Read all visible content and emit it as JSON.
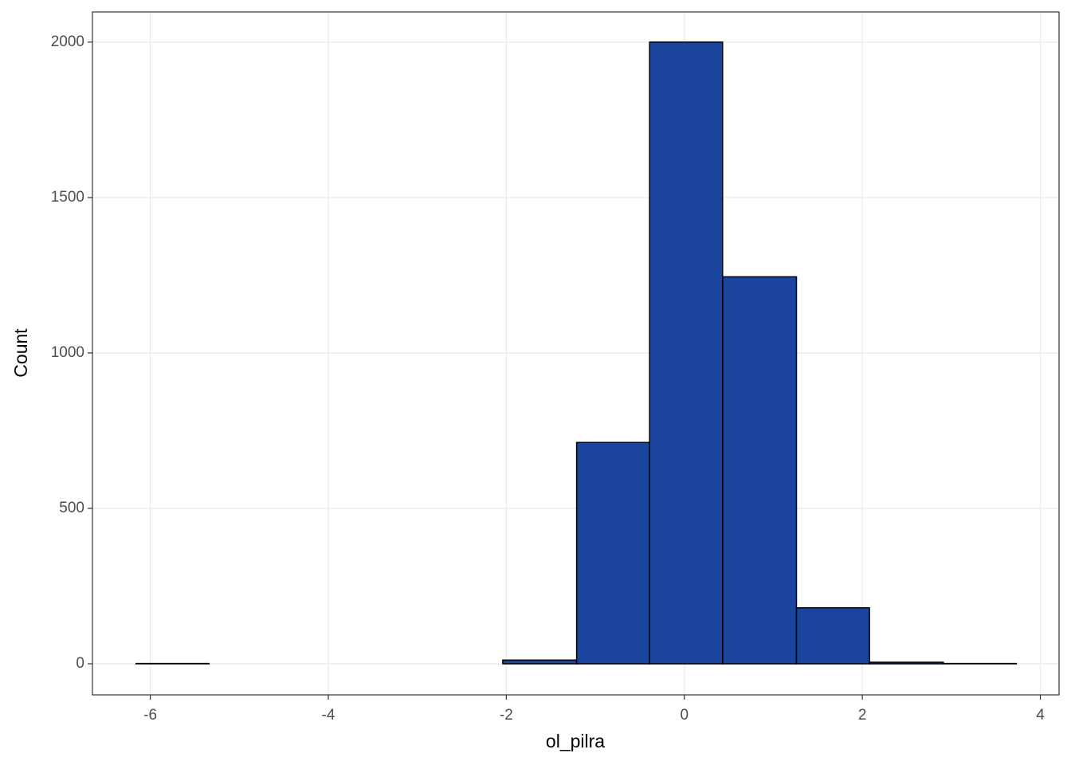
{
  "chart_data": {
    "type": "histogram",
    "x_label": "ol_pilra",
    "y_label": "Count",
    "bins": [
      -6.16,
      -5.34,
      -4.51,
      -3.69,
      -2.86,
      -2.04,
      -1.21,
      -0.39,
      0.43,
      1.26,
      2.08,
      2.91,
      3.73
    ],
    "values": [
      1,
      0,
      0,
      0,
      0,
      12,
      712,
      2000,
      1245,
      180,
      5,
      1
    ],
    "color": "#1b449c",
    "edge_color": "#000000",
    "xlim": [
      -6.65,
      4.21
    ],
    "xticks": [
      -6,
      -4,
      -2,
      0,
      2,
      4
    ],
    "ylim": [
      -100,
      2097
    ],
    "yticks": [
      0,
      500,
      1000,
      1500,
      2000
    ],
    "grid": true
  }
}
